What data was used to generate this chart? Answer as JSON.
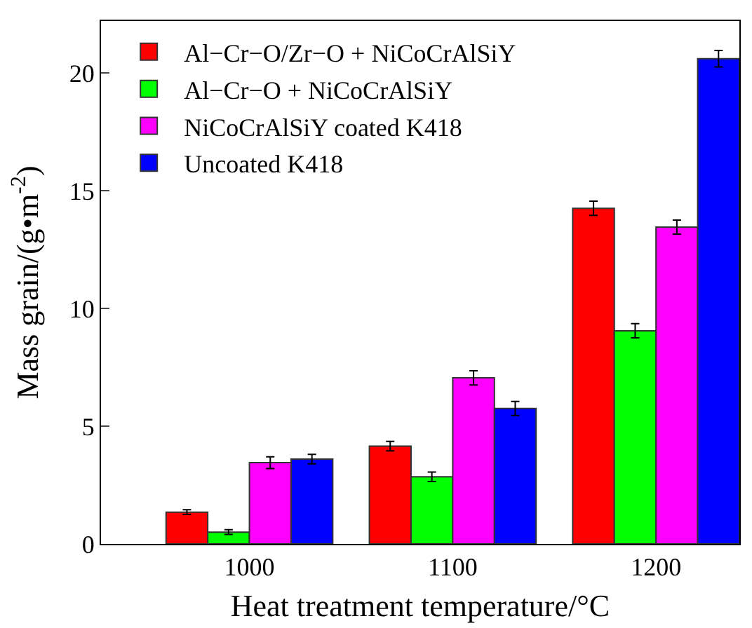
{
  "chart_data": {
    "type": "bar",
    "xlabel": "Heat treatment temperature/°C",
    "ylabel": "Mass grain/(g•m$^{-2}$)",
    "categories": [
      "1000",
      "1100",
      "1200"
    ],
    "series": [
      {
        "name": "Al−Cr−O/Zr−O + NiCoCrAlSiY",
        "color": "#ff0000",
        "values": [
          1.35,
          4.15,
          14.25
        ],
        "errors": [
          0.1,
          0.2,
          0.3
        ]
      },
      {
        "name": "Al−Cr−O + NiCoCrAlSiY",
        "color": "#00ff00",
        "values": [
          0.5,
          2.85,
          9.05
        ],
        "errors": [
          0.1,
          0.2,
          0.3
        ]
      },
      {
        "name": "NiCoCrAlSiY coated K418",
        "color": "#ff00ff",
        "values": [
          3.45,
          7.05,
          13.45
        ],
        "errors": [
          0.25,
          0.3,
          0.3
        ]
      },
      {
        "name": "Uncoated K418",
        "color": "#0000ff",
        "values": [
          3.6,
          5.75,
          20.6
        ],
        "errors": [
          0.2,
          0.3,
          0.35
        ]
      }
    ],
    "ylim": [
      0,
      22.2
    ],
    "yticks": [
      0,
      5,
      10,
      15,
      20
    ],
    "legend": "top left"
  }
}
